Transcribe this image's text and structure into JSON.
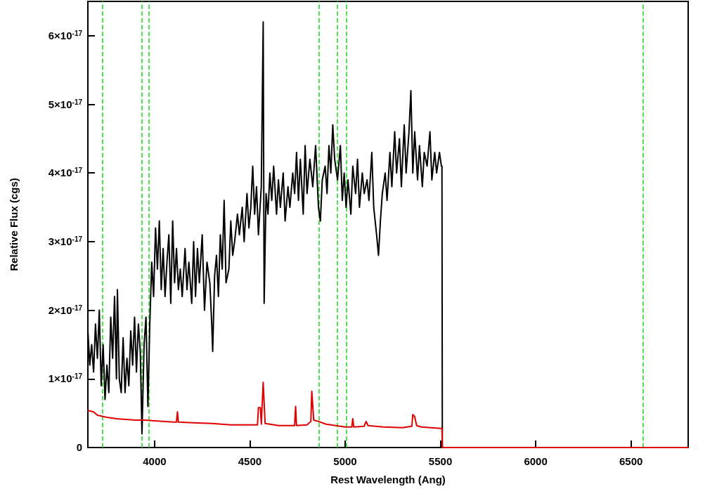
{
  "chart_data": {
    "type": "line",
    "xlabel": "Rest Wavelength (Ang)",
    "ylabel": "Relative Flux (cgs)",
    "xlim": [
      3650,
      6800
    ],
    "xticks": [
      4000,
      4500,
      5000,
      5500,
      6000,
      6500
    ],
    "ylim": [
      0,
      6.5e-17
    ],
    "yticks": [
      0,
      {
        "value": 1e-17,
        "label": "1×10$^{-17}$"
      },
      {
        "value": 2e-17,
        "label": "2×10$^{-17}$"
      },
      {
        "value": 3e-17,
        "label": "3×10$^{-17}$"
      },
      {
        "value": 4e-17,
        "label": "4×10$^{-17}$"
      },
      {
        "value": 5e-17,
        "label": "5×10$^{-17}$"
      },
      {
        "value": 6e-17,
        "label": "6×10$^{-17}$"
      }
    ],
    "grid": false,
    "marker": "none",
    "line_style": "solid",
    "series": [
      {
        "color": "#000000",
        "x": [
          3650,
          3660,
          3670,
          3680,
          3690,
          3700,
          3710,
          3720,
          3730,
          3740,
          3750,
          3760,
          3770,
          3780,
          3790,
          3800,
          3805,
          3815,
          3825,
          3835,
          3845,
          3855,
          3865,
          3875,
          3885,
          3895,
          3905,
          3915,
          3925,
          3934,
          3945,
          3955,
          3965,
          3975,
          3985,
          3995,
          4005,
          4015,
          4025,
          4035,
          4045,
          4055,
          4065,
          4075,
          4085,
          4095,
          4105,
          4115,
          4125,
          4135,
          4145,
          4160,
          4170,
          4180,
          4195,
          4205,
          4215,
          4225,
          4235,
          4250,
          4262,
          4275,
          4290,
          4300,
          4305,
          4315,
          4325,
          4335,
          4345,
          4355,
          4365,
          4375,
          4390,
          4400,
          4410,
          4420,
          4435,
          4445,
          4460,
          4470,
          4485,
          4495,
          4505,
          4515,
          4525,
          4535,
          4545,
          4560,
          4570,
          4575,
          4585,
          4595,
          4605,
          4615,
          4625,
          4640,
          4650,
          4660,
          4675,
          4685,
          4700,
          4710,
          4725,
          4735,
          4745,
          4755,
          4765,
          4780,
          4790,
          4800,
          4815,
          4830,
          4845,
          4860,
          4870,
          4880,
          4895,
          4905,
          4915,
          4925,
          4935,
          4945,
          4960,
          4975,
          4985,
          4995,
          5005,
          5015,
          5030,
          5040,
          5055,
          5065,
          5075,
          5090,
          5100,
          5115,
          5125,
          5140,
          5150,
          5165,
          5175,
          5185,
          5195,
          5210,
          5220,
          5235,
          5245,
          5260,
          5270,
          5285,
          5295,
          5310,
          5320,
          5335,
          5345,
          5355,
          5365,
          5380,
          5390,
          5405,
          5415,
          5430,
          5445,
          5455,
          5470,
          5480,
          5495,
          5505,
          5508,
          5510,
          6800
        ],
        "values": [
          1.7e-17,
          1.2e-17,
          1.5e-17,
          1.1e-17,
          1.8e-17,
          1.3e-17,
          2e-17,
          9e-18,
          1.5e-17,
          7e-18,
          1.2e-17,
          8e-18,
          1.9e-17,
          1.3e-17,
          2.2e-17,
          1e-17,
          2.3e-17,
          1e-17,
          8e-18,
          1.6e-17,
          8e-18,
          1.3e-17,
          9e-18,
          1.7e-17,
          1.2e-17,
          1.9e-17,
          1.1e-17,
          1.8e-17,
          1.4e-17,
          2e-18,
          1.5e-17,
          1.9e-17,
          6e-18,
          1.8e-17,
          2.7e-17,
          2.2e-17,
          3.2e-17,
          2.6e-17,
          3.3e-17,
          2.3e-17,
          2.9e-17,
          2.2e-17,
          2.7e-17,
          3.1e-17,
          2.1e-17,
          3.3e-17,
          2.4e-17,
          2.9e-17,
          2.3e-17,
          2.6e-17,
          2.2e-17,
          2.9e-17,
          2.3e-17,
          2.7e-17,
          2.1e-17,
          3e-17,
          2.2e-17,
          2.9e-17,
          2.4e-17,
          3.1e-17,
          2e-17,
          2.7e-17,
          2.4e-17,
          1.8e-17,
          1.4e-17,
          2.5e-17,
          2.8e-17,
          2.2e-17,
          3.1e-17,
          2.6e-17,
          3.6e-17,
          2.4e-17,
          2.6e-17,
          3.3e-17,
          2.8e-17,
          3e-17,
          3.4e-17,
          3.1e-17,
          3.5e-17,
          3e-17,
          3.7e-17,
          3.2e-17,
          3.5e-17,
          4.1e-17,
          3.4e-17,
          3.8e-17,
          3.1e-17,
          3.8e-17,
          6.2e-17,
          2.1e-17,
          3.7e-17,
          3.4e-17,
          4e-17,
          3.6e-17,
          4.1e-17,
          3.4e-17,
          3.9e-17,
          3.5e-17,
          4e-17,
          3.3e-17,
          3.8e-17,
          3.5e-17,
          4e-17,
          3.7e-17,
          4.3e-17,
          3.6e-17,
          4.2e-17,
          3.4e-17,
          4.4e-17,
          3.7e-17,
          4.2e-17,
          3.8e-17,
          4.4e-17,
          3.5e-17,
          3.3e-17,
          3.9e-17,
          4.1e-17,
          3.7e-17,
          4.4e-17,
          4e-17,
          4.7e-17,
          4.2e-17,
          3.9e-17,
          4.4e-17,
          3.6e-17,
          4e-17,
          3.5e-17,
          3.9e-17,
          3.4e-17,
          4.1e-17,
          3.7e-17,
          4.2e-17,
          3.5e-17,
          4e-17,
          3.7e-17,
          3.9e-17,
          3.6e-17,
          4.3e-17,
          3.5e-17,
          3.1e-17,
          2.8e-17,
          3.3e-17,
          3.7e-17,
          4e-17,
          3.6e-17,
          4.3e-17,
          3.8e-17,
          4.6e-17,
          4e-17,
          4.5e-17,
          3.8e-17,
          4.7e-17,
          4e-17,
          4.6e-17,
          5.2e-17,
          4e-17,
          4.6e-17,
          3.9e-17,
          4.4e-17,
          3.8e-17,
          4.3e-17,
          4.1e-17,
          4.6e-17,
          3.9e-17,
          4.3e-17,
          4e-17,
          4.3e-17,
          4.1e-17,
          4.1e-17,
          0,
          0
        ]
      },
      {
        "color": "#e00000",
        "x": [
          3650,
          3680,
          3700,
          3750,
          3800,
          3900,
          3950,
          4000,
          4100,
          4115,
          4120,
          4125,
          4200,
          4300,
          4350,
          4400,
          4500,
          4540,
          4545,
          4555,
          4560,
          4570,
          4580,
          4650,
          4735,
          4740,
          4745,
          4800,
          4820,
          4825,
          4835,
          4860,
          4900,
          5000,
          5035,
          5040,
          5045,
          5100,
          5110,
          5120,
          5200,
          5300,
          5350,
          5355,
          5365,
          5375,
          5400,
          5500,
          5508,
          5510,
          6800
        ],
        "values": [
          5.4e-18,
          5.2e-18,
          4.7e-18,
          4.4e-18,
          4.2e-18,
          4e-18,
          4e-18,
          3.9e-18,
          3.7e-18,
          3.7e-18,
          5.2e-18,
          3.7e-18,
          3.6e-18,
          3.5e-18,
          3.4e-18,
          3.3e-18,
          3.3e-18,
          3.3e-18,
          5.8e-18,
          5.8e-18,
          3.4e-18,
          9.5e-18,
          3.5e-18,
          3.2e-18,
          3.2e-18,
          6e-18,
          3.2e-18,
          3.3e-18,
          3.8e-18,
          8.2e-18,
          4e-18,
          3.8e-18,
          3.4e-18,
          3e-18,
          3e-18,
          4.2e-18,
          3e-18,
          3.1e-18,
          3.8e-18,
          3.2e-18,
          3e-18,
          2.9e-18,
          3.1e-18,
          4.8e-18,
          4.5e-18,
          3.2e-18,
          3e-18,
          2.8e-18,
          2.8e-18,
          0,
          0
        ]
      }
    ],
    "ref_lines": [
      {
        "axis": "x",
        "value": 3727,
        "color": "#22dd22",
        "line_style": "dashed"
      },
      {
        "axis": "x",
        "value": 3934,
        "color": "#22dd22",
        "line_style": "dashed"
      },
      {
        "axis": "x",
        "value": 3969,
        "color": "#22dd22",
        "line_style": "dashed"
      },
      {
        "axis": "x",
        "value": 4861,
        "color": "#22dd22",
        "line_style": "dashed"
      },
      {
        "axis": "x",
        "value": 4959,
        "color": "#22dd22",
        "line_style": "dashed"
      },
      {
        "axis": "x",
        "value": 5007,
        "color": "#22dd22",
        "line_style": "dashed"
      },
      {
        "axis": "x",
        "value": 6563,
        "color": "#22dd22",
        "line_style": "dashed"
      }
    ]
  }
}
